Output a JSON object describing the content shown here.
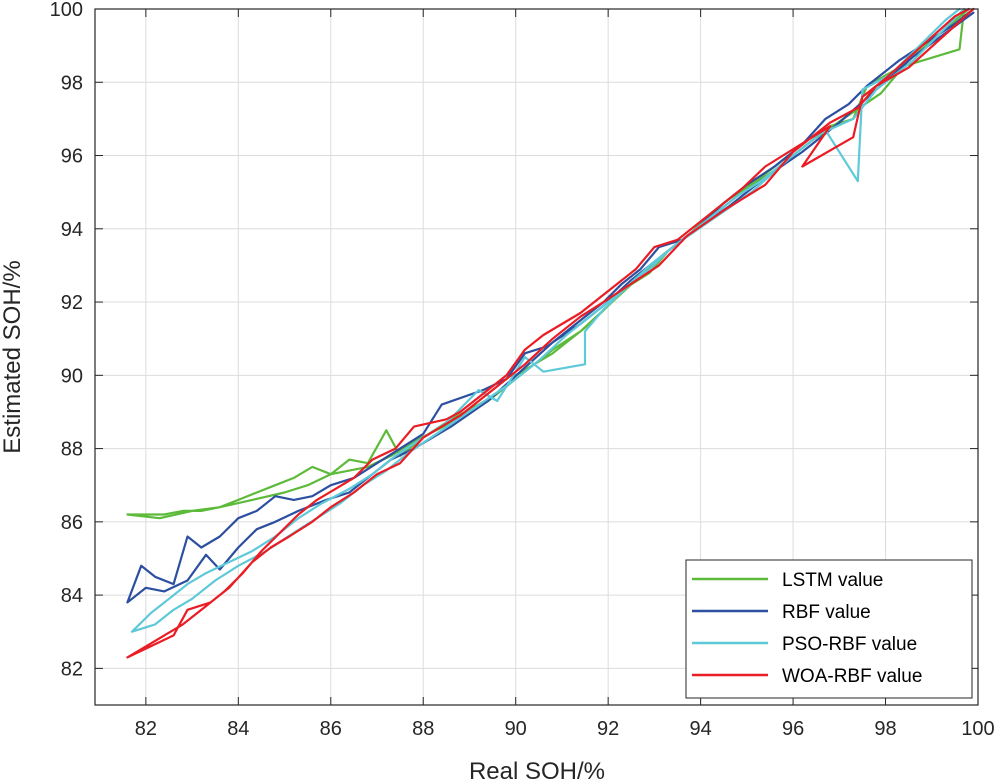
{
  "chart_data": {
    "type": "line",
    "title": "",
    "xlabel": "Real SOH/%",
    "ylabel": "Estimated SOH/%",
    "xlim": [
      80.9,
      100
    ],
    "ylim": [
      81,
      100
    ],
    "xticks": [
      82,
      84,
      86,
      88,
      90,
      92,
      94,
      96,
      98,
      100
    ],
    "yticks": [
      82,
      84,
      86,
      88,
      90,
      92,
      94,
      96,
      98,
      100
    ],
    "grid": true,
    "legend_position": "bottom-right",
    "series": [
      {
        "name": "LSTM value",
        "color": "#5dba3b",
        "points": [
          [
            99.7,
            100
          ],
          [
            99.6,
            98.9
          ],
          [
            98.3,
            98.4
          ],
          [
            97.6,
            97.9
          ],
          [
            97.3,
            97.0
          ],
          [
            96.8,
            96.8
          ],
          [
            96.4,
            96.5
          ],
          [
            95.7,
            95.8
          ],
          [
            95.2,
            95.3
          ],
          [
            94.6,
            94.8
          ],
          [
            94.2,
            94.4
          ],
          [
            93.8,
            93.9
          ],
          [
            93.3,
            93.4
          ],
          [
            92.9,
            92.8
          ],
          [
            92.4,
            92.4
          ],
          [
            92.0,
            91.9
          ],
          [
            91.6,
            91.4
          ],
          [
            91.2,
            91.0
          ],
          [
            90.8,
            90.6
          ],
          [
            90.4,
            90.3
          ],
          [
            90.0,
            90.0
          ],
          [
            89.6,
            89.5
          ],
          [
            89.2,
            89.2
          ],
          [
            88.6,
            88.8
          ],
          [
            88.0,
            88.3
          ],
          [
            87.5,
            87.8
          ],
          [
            87.2,
            88.5
          ],
          [
            86.8,
            87.6
          ],
          [
            86.4,
            87.7
          ],
          [
            86.0,
            87.3
          ],
          [
            85.6,
            87.5
          ],
          [
            85.2,
            87.2
          ],
          [
            84.8,
            87.0
          ],
          [
            84.4,
            86.8
          ],
          [
            84.0,
            86.6
          ],
          [
            83.6,
            86.4
          ],
          [
            83.2,
            86.3
          ],
          [
            82.8,
            86.3
          ],
          [
            82.4,
            86.2
          ],
          [
            82.0,
            86.2
          ],
          [
            81.6,
            86.2
          ],
          [
            82.3,
            86.1
          ],
          [
            83.0,
            86.3
          ],
          [
            83.6,
            86.4
          ],
          [
            84.3,
            86.6
          ],
          [
            85.0,
            86.8
          ],
          [
            85.5,
            87.0
          ],
          [
            86.0,
            87.3
          ],
          [
            86.8,
            87.5
          ],
          [
            87.3,
            87.8
          ],
          [
            87.8,
            88.2
          ],
          [
            88.6,
            88.7
          ],
          [
            89.4,
            89.3
          ],
          [
            90.2,
            90.1
          ],
          [
            90.8,
            90.7
          ],
          [
            91.4,
            91.2
          ],
          [
            92.0,
            91.9
          ],
          [
            92.6,
            92.6
          ],
          [
            93.2,
            93.3
          ],
          [
            94.0,
            94.1
          ],
          [
            94.8,
            94.9
          ],
          [
            95.6,
            95.6
          ],
          [
            96.4,
            96.4
          ],
          [
            97.2,
            97.1
          ],
          [
            97.9,
            97.7
          ],
          [
            98.5,
            98.6
          ],
          [
            99.8,
            100
          ]
        ]
      },
      {
        "name": "RBF value",
        "color": "#2c4fa0",
        "points": [
          [
            99.9,
            100
          ],
          [
            99.5,
            99.6
          ],
          [
            98.3,
            98.6
          ],
          [
            97.6,
            97.9
          ],
          [
            97.2,
            97.4
          ],
          [
            96.7,
            97.0
          ],
          [
            96.2,
            96.3
          ],
          [
            95.6,
            95.7
          ],
          [
            95.0,
            95.2
          ],
          [
            94.5,
            94.7
          ],
          [
            94.0,
            94.1
          ],
          [
            93.6,
            93.7
          ],
          [
            93.1,
            93.5
          ],
          [
            92.7,
            92.9
          ],
          [
            92.3,
            92.5
          ],
          [
            91.9,
            92.0
          ],
          [
            91.5,
            91.6
          ],
          [
            91.1,
            91.2
          ],
          [
            90.7,
            90.8
          ],
          [
            90.2,
            90.6
          ],
          [
            89.8,
            89.9
          ],
          [
            89.3,
            89.6
          ],
          [
            88.4,
            89.2
          ],
          [
            88.0,
            88.4
          ],
          [
            87.5,
            88.0
          ],
          [
            87.0,
            87.6
          ],
          [
            86.5,
            87.2
          ],
          [
            86.0,
            87.0
          ],
          [
            85.6,
            86.7
          ],
          [
            85.2,
            86.6
          ],
          [
            84.8,
            86.7
          ],
          [
            84.4,
            86.3
          ],
          [
            84.0,
            86.1
          ],
          [
            83.6,
            85.6
          ],
          [
            83.2,
            85.3
          ],
          [
            82.9,
            85.6
          ],
          [
            82.6,
            84.3
          ],
          [
            82.2,
            84.5
          ],
          [
            81.9,
            84.8
          ],
          [
            81.6,
            83.8
          ],
          [
            82.0,
            84.2
          ],
          [
            82.4,
            84.1
          ],
          [
            82.9,
            84.4
          ],
          [
            83.3,
            85.1
          ],
          [
            83.6,
            84.7
          ],
          [
            84.0,
            85.3
          ],
          [
            84.4,
            85.8
          ],
          [
            84.8,
            86.0
          ],
          [
            85.3,
            86.3
          ],
          [
            85.9,
            86.6
          ],
          [
            86.4,
            86.8
          ],
          [
            86.9,
            87.3
          ],
          [
            87.3,
            87.7
          ],
          [
            87.8,
            88.0
          ],
          [
            88.6,
            88.6
          ],
          [
            89.4,
            89.3
          ],
          [
            90.1,
            90.1
          ],
          [
            90.8,
            90.9
          ],
          [
            91.4,
            91.4
          ],
          [
            91.9,
            91.9
          ],
          [
            92.5,
            92.6
          ],
          [
            93.1,
            93.2
          ],
          [
            93.8,
            93.9
          ],
          [
            94.6,
            94.6
          ],
          [
            95.4,
            95.4
          ],
          [
            96.2,
            96.1
          ],
          [
            97.0,
            96.9
          ],
          [
            97.8,
            97.8
          ],
          [
            98.6,
            98.7
          ],
          [
            99.9,
            99.9
          ]
        ]
      },
      {
        "name": "PSO-RBF value",
        "color": "#5ec9d8",
        "points": [
          [
            99.6,
            100
          ],
          [
            99.3,
            99.7
          ],
          [
            98.1,
            98.2
          ],
          [
            97.5,
            97.8
          ],
          [
            97.4,
            95.3
          ],
          [
            96.7,
            96.7
          ],
          [
            95.7,
            95.7
          ],
          [
            95.3,
            95.3
          ],
          [
            94.8,
            94.9
          ],
          [
            94.3,
            94.4
          ],
          [
            93.8,
            93.9
          ],
          [
            93.3,
            93.4
          ],
          [
            92.9,
            92.9
          ],
          [
            92.4,
            92.4
          ],
          [
            91.9,
            91.8
          ],
          [
            91.5,
            91.2
          ],
          [
            91.5,
            90.3
          ],
          [
            90.6,
            90.1
          ],
          [
            90.2,
            90.5
          ],
          [
            89.6,
            89.3
          ],
          [
            89.2,
            89.6
          ],
          [
            88.5,
            88.7
          ],
          [
            88.0,
            88.3
          ],
          [
            87.4,
            87.8
          ],
          [
            86.9,
            87.3
          ],
          [
            86.4,
            86.9
          ],
          [
            85.8,
            86.5
          ],
          [
            85.3,
            86.1
          ],
          [
            84.8,
            85.6
          ],
          [
            84.3,
            85.2
          ],
          [
            83.8,
            84.9
          ],
          [
            83.3,
            84.6
          ],
          [
            82.9,
            84.3
          ],
          [
            82.5,
            83.9
          ],
          [
            82.1,
            83.5
          ],
          [
            81.7,
            83.0
          ],
          [
            82.2,
            83.2
          ],
          [
            82.6,
            83.6
          ],
          [
            83.0,
            83.9
          ],
          [
            83.5,
            84.4
          ],
          [
            84.0,
            84.8
          ],
          [
            84.6,
            85.2
          ],
          [
            85.2,
            85.7
          ],
          [
            85.7,
            86.1
          ],
          [
            86.2,
            86.5
          ],
          [
            86.7,
            87.0
          ],
          [
            87.2,
            87.4
          ],
          [
            87.7,
            87.9
          ],
          [
            88.4,
            88.5
          ],
          [
            89.1,
            89.1
          ],
          [
            89.9,
            89.8
          ],
          [
            90.5,
            90.4
          ],
          [
            91.1,
            91.1
          ],
          [
            91.7,
            91.7
          ],
          [
            92.3,
            92.3
          ],
          [
            92.9,
            93.0
          ],
          [
            93.5,
            93.6
          ],
          [
            94.3,
            94.3
          ],
          [
            95.1,
            95.0
          ],
          [
            95.9,
            95.9
          ],
          [
            96.6,
            96.6
          ],
          [
            97.3,
            97.0
          ],
          [
            97.8,
            97.8
          ],
          [
            98.6,
            98.6
          ],
          [
            99.7,
            100
          ]
        ]
      },
      {
        "name": "WOA-RBF value",
        "color": "#ea1c24",
        "points": [
          [
            99.8,
            100
          ],
          [
            99.5,
            99.8
          ],
          [
            98.0,
            98.1
          ],
          [
            97.5,
            97.6
          ],
          [
            97.3,
            96.5
          ],
          [
            96.2,
            95.7
          ],
          [
            96.8,
            96.8
          ],
          [
            95.4,
            95.7
          ],
          [
            94.9,
            95.1
          ],
          [
            94.4,
            94.6
          ],
          [
            94.0,
            94.2
          ],
          [
            93.5,
            93.7
          ],
          [
            93.0,
            93.5
          ],
          [
            92.6,
            92.9
          ],
          [
            92.2,
            92.5
          ],
          [
            91.8,
            92.1
          ],
          [
            91.4,
            91.7
          ],
          [
            91.0,
            91.4
          ],
          [
            90.6,
            91.1
          ],
          [
            90.2,
            90.7
          ],
          [
            89.8,
            90.0
          ],
          [
            89.3,
            89.5
          ],
          [
            88.8,
            89.0
          ],
          [
            88.5,
            88.8
          ],
          [
            87.8,
            88.6
          ],
          [
            87.4,
            88.0
          ],
          [
            86.9,
            87.7
          ],
          [
            86.5,
            87.2
          ],
          [
            86.1,
            86.9
          ],
          [
            85.7,
            86.6
          ],
          [
            85.3,
            86.2
          ],
          [
            84.9,
            85.7
          ],
          [
            84.5,
            85.2
          ],
          [
            84.1,
            84.6
          ],
          [
            83.7,
            84.1
          ],
          [
            83.3,
            83.7
          ],
          [
            82.8,
            83.2
          ],
          [
            82.4,
            82.9
          ],
          [
            82.0,
            82.6
          ],
          [
            81.6,
            82.3
          ],
          [
            82.1,
            82.6
          ],
          [
            82.6,
            82.9
          ],
          [
            82.9,
            83.6
          ],
          [
            83.4,
            83.8
          ],
          [
            83.8,
            84.2
          ],
          [
            84.3,
            84.9
          ],
          [
            84.7,
            85.3
          ],
          [
            85.1,
            85.6
          ],
          [
            85.6,
            86.0
          ],
          [
            86.0,
            86.4
          ],
          [
            86.5,
            86.8
          ],
          [
            87.0,
            87.3
          ],
          [
            87.5,
            87.6
          ],
          [
            88.0,
            88.3
          ],
          [
            88.8,
            88.9
          ],
          [
            89.5,
            89.6
          ],
          [
            90.2,
            90.3
          ],
          [
            90.8,
            91.0
          ],
          [
            91.4,
            91.6
          ],
          [
            91.9,
            92.0
          ],
          [
            92.5,
            92.5
          ],
          [
            93.1,
            93.0
          ],
          [
            93.7,
            93.8
          ],
          [
            94.5,
            94.5
          ],
          [
            95.4,
            95.2
          ],
          [
            96.0,
            96.1
          ],
          [
            96.8,
            96.9
          ],
          [
            97.4,
            97.3
          ],
          [
            97.8,
            97.9
          ],
          [
            98.5,
            98.4
          ],
          [
            99.9,
            100
          ]
        ]
      }
    ]
  }
}
